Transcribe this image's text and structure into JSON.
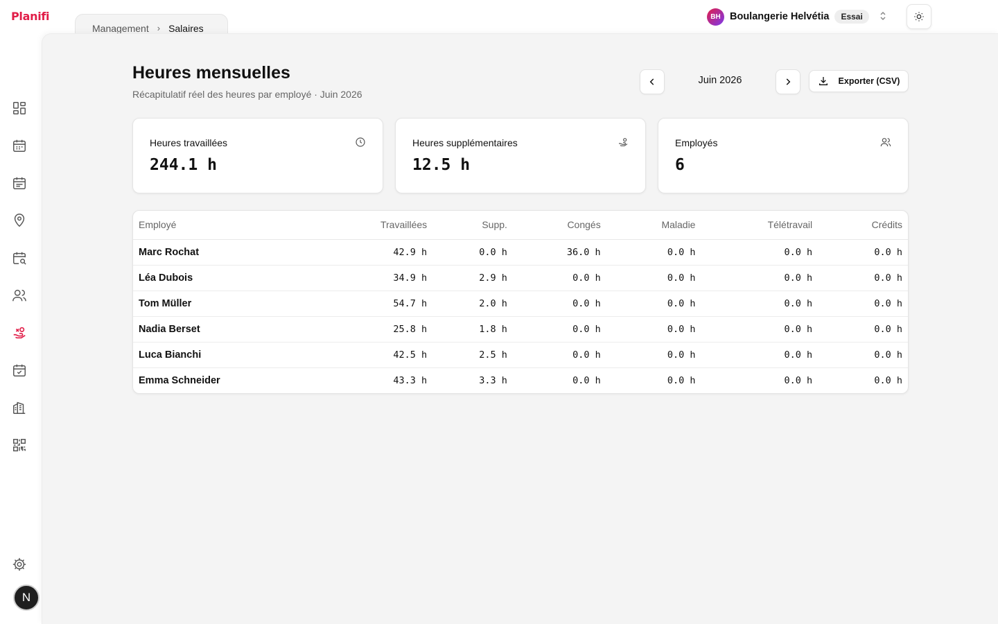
{
  "app": {
    "logo": "Planifi"
  },
  "breadcrumb": {
    "parent": "Management",
    "separator": "›",
    "current": "Salaires"
  },
  "org": {
    "initials": "BH",
    "name": "Boulangerie Helvétia",
    "plan": "Essai"
  },
  "colors": {
    "brand": "#e11d48",
    "active_icon": "#e11d48",
    "main_bg": "#f4f4f4"
  },
  "sidebar": {
    "items": [
      {
        "icon": "dashboard-icon"
      },
      {
        "icon": "calendar-icon"
      },
      {
        "icon": "schedule-icon"
      },
      {
        "icon": "location-pin-icon"
      },
      {
        "icon": "calendar-search-icon"
      },
      {
        "icon": "users-icon"
      },
      {
        "icon": "salary-hand-coins-icon",
        "active": true
      },
      {
        "icon": "calendar-check-icon"
      },
      {
        "icon": "building-icon"
      },
      {
        "icon": "qr-code-icon"
      }
    ],
    "settings_icon": "gear-icon",
    "user_initial": "N"
  },
  "page": {
    "title": "Heures mensuelles",
    "subtitle": "Récapitulatif réel des heures par employé · Juin 2026",
    "month": "Juin 2026",
    "export_label": "Exporter (CSV)"
  },
  "cards": [
    {
      "label": "Heures travaillées",
      "value": "244.1 h",
      "icon": "clock-icon"
    },
    {
      "label": "Heures supplémentaires",
      "value": "12.5 h",
      "icon": "hand-coins-icon"
    },
    {
      "label": "Employés",
      "value": "6",
      "icon": "users-icon"
    }
  ],
  "table": {
    "headers": [
      "Employé",
      "Travaillées",
      "Supp.",
      "Congés",
      "Maladie",
      "Télétravail",
      "Crédits"
    ],
    "rows": [
      [
        "Marc Rochat",
        "42.9 h",
        "0.0 h",
        "36.0 h",
        "0.0 h",
        "0.0 h",
        "0.0 h"
      ],
      [
        "Léa Dubois",
        "34.9 h",
        "2.9 h",
        "0.0 h",
        "0.0 h",
        "0.0 h",
        "0.0 h"
      ],
      [
        "Tom Müller",
        "54.7 h",
        "2.0 h",
        "0.0 h",
        "0.0 h",
        "0.0 h",
        "0.0 h"
      ],
      [
        "Nadia Berset",
        "25.8 h",
        "1.8 h",
        "0.0 h",
        "0.0 h",
        "0.0 h",
        "0.0 h"
      ],
      [
        "Luca Bianchi",
        "42.5 h",
        "2.5 h",
        "0.0 h",
        "0.0 h",
        "0.0 h",
        "0.0 h"
      ],
      [
        "Emma Schneider",
        "43.3 h",
        "3.3 h",
        "0.0 h",
        "0.0 h",
        "0.0 h",
        "0.0 h"
      ]
    ]
  }
}
